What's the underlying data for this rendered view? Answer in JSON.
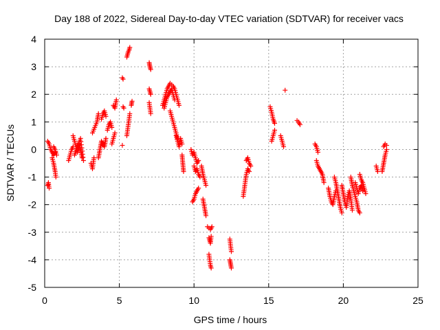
{
  "chart_data": {
    "type": "scatter",
    "title": "Day 188 of 2022, Sidereal Day-to-day VTEC variation (SDTVAR) for receiver vacs",
    "xlabel": "GPS time / hours",
    "ylabel": "SDTVAR / TECUs",
    "xlim": [
      0,
      25
    ],
    "ylim": [
      -5,
      4
    ],
    "xticks": [
      0,
      5,
      10,
      15,
      20,
      25
    ],
    "yticks": [
      -5,
      -4,
      -3,
      -2,
      -1,
      0,
      1,
      2,
      3,
      4
    ],
    "grid": true,
    "marker": "+",
    "marker_color": "#ff0000",
    "series": [
      {
        "name": "SDTVAR",
        "segments": [
          {
            "x": [
              0.2,
              0.25,
              0.3
            ],
            "y": [
              -1.3,
              -1.2,
              -1.4
            ]
          },
          {
            "x": [
              0.2,
              0.3,
              0.4,
              0.5,
              0.6,
              0.7
            ],
            "y": [
              0.3,
              0.2,
              0.0,
              -0.1,
              -0.2,
              -0.1
            ]
          },
          {
            "x": [
              0.5,
              0.6,
              0.7,
              0.75
            ],
            "y": [
              -0.3,
              -0.5,
              -0.8,
              -1.0
            ]
          },
          {
            "x": [
              0.6,
              0.7,
              0.8
            ],
            "y": [
              0.1,
              0.0,
              -0.2
            ]
          },
          {
            "x": [
              1.6,
              1.7,
              1.8,
              1.9
            ],
            "y": [
              -0.4,
              -0.2,
              0.0,
              0.1
            ]
          },
          {
            "x": [
              1.9,
              2.0,
              2.1,
              2.2,
              2.3,
              2.4,
              2.5
            ],
            "y": [
              0.5,
              0.3,
              0.1,
              -0.1,
              0.2,
              0.0,
              -0.3
            ]
          },
          {
            "x": [
              2.0,
              2.2,
              2.4,
              2.6
            ],
            "y": [
              -0.2,
              0.1,
              0.4,
              -0.4
            ]
          },
          {
            "x": [
              3.1,
              3.2,
              3.3
            ],
            "y": [
              -0.5,
              -0.7,
              -0.3
            ]
          },
          {
            "x": [
              3.2,
              3.35,
              3.5,
              3.6
            ],
            "y": [
              0.6,
              0.8,
              1.0,
              1.3
            ]
          },
          {
            "x": [
              3.6,
              3.7,
              3.8,
              3.9,
              4.0,
              4.1
            ],
            "y": [
              -0.3,
              0.0,
              0.3,
              0.2,
              0.1,
              0.4
            ]
          },
          {
            "x": [
              3.8,
              3.9,
              4.0,
              4.1
            ],
            "y": [
              1.1,
              1.3,
              1.4,
              1.2
            ]
          },
          {
            "x": [
              4.2,
              4.3,
              4.4,
              4.5
            ],
            "y": [
              0.7,
              0.9,
              1.0,
              0.8
            ]
          },
          {
            "x": [
              4.5,
              4.6,
              4.7
            ],
            "y": [
              0.2,
              0.4,
              0.6
            ]
          },
          {
            "x": [
              4.6,
              4.7,
              4.8
            ],
            "y": [
              1.6,
              1.5,
              1.8
            ]
          },
          {
            "x": [
              5.2
            ],
            "y": [
              0.15
            ]
          },
          {
            "x": [
              5.2,
              5.25
            ],
            "y": [
              2.6,
              2.55
            ]
          },
          {
            "x": [
              5.25,
              5.3
            ],
            "y": [
              1.55,
              1.5
            ]
          },
          {
            "x": [
              5.5,
              5.55,
              5.6,
              5.65,
              5.7
            ],
            "y": [
              0.5,
              0.7,
              0.9,
              1.1,
              1.3
            ]
          },
          {
            "x": [
              5.5,
              5.55,
              5.6,
              5.65,
              5.7
            ],
            "y": [
              3.35,
              3.45,
              3.55,
              3.6,
              3.7
            ]
          },
          {
            "x": [
              5.8,
              5.85
            ],
            "y": [
              1.6,
              1.75
            ]
          },
          {
            "x": [
              7.0,
              7.05,
              7.1
            ],
            "y": [
              3.15,
              3.0,
              2.9
            ]
          },
          {
            "x": [
              7.0,
              7.05,
              7.1
            ],
            "y": [
              2.2,
              2.1,
              2.0
            ]
          },
          {
            "x": [
              7.0,
              7.05,
              7.1
            ],
            "y": [
              1.7,
              1.5,
              1.3
            ]
          },
          {
            "x": [
              7.9,
              8.0,
              8.1,
              8.2,
              8.3,
              8.4,
              8.5,
              8.6,
              8.7,
              8.8,
              8.9,
              9.0
            ],
            "y": [
              1.6,
              1.8,
              2.0,
              2.2,
              2.3,
              2.4,
              2.35,
              2.3,
              2.2,
              2.0,
              1.8,
              1.6
            ]
          },
          {
            "x": [
              8.0,
              8.1,
              8.2,
              8.3,
              8.4,
              8.5,
              8.6,
              8.7
            ],
            "y": [
              1.5,
              1.7,
              1.9,
              2.0,
              2.1,
              2.2,
              2.0,
              1.8
            ]
          },
          {
            "x": [
              8.4,
              8.5,
              8.6,
              8.7,
              8.8,
              8.9
            ],
            "y": [
              1.4,
              1.2,
              1.0,
              0.8,
              0.6,
              0.4
            ]
          },
          {
            "x": [
              8.8,
              8.9,
              9.0,
              9.1,
              9.2
            ],
            "y": [
              0.5,
              0.3,
              0.1,
              0.4,
              0.2
            ]
          },
          {
            "x": [
              9.2,
              9.25,
              9.3
            ],
            "y": [
              -0.2,
              -0.5,
              -0.8
            ]
          },
          {
            "x": [
              9.8,
              9.9,
              10.0,
              10.1,
              10.2,
              10.3
            ],
            "y": [
              0.0,
              -0.2,
              -0.1,
              -0.3,
              -0.5,
              -0.4
            ]
          },
          {
            "x": [
              10.0,
              10.1,
              10.2,
              10.3,
              10.4
            ],
            "y": [
              -0.6,
              -0.8,
              -0.7,
              -0.9,
              -1.0
            ]
          },
          {
            "x": [
              9.9,
              10.0,
              10.1,
              10.2,
              10.3
            ],
            "y": [
              -1.9,
              -1.8,
              -1.6,
              -1.5,
              -1.4
            ]
          },
          {
            "x": [
              10.5,
              10.6,
              10.7,
              10.8
            ],
            "y": [
              -0.6,
              -0.9,
              -1.1,
              -1.3
            ]
          },
          {
            "x": [
              10.6,
              10.7,
              10.8
            ],
            "y": [
              -1.8,
              -2.1,
              -2.4
            ]
          },
          {
            "x": [
              10.9,
              11.0,
              11.1,
              11.2
            ],
            "y": [
              -2.8,
              -2.85,
              -2.9,
              -2.8
            ]
          },
          {
            "x": [
              11.0,
              11.05,
              11.1,
              11.15
            ],
            "y": [
              -3.2,
              -3.3,
              -3.4,
              -3.15
            ]
          },
          {
            "x": [
              11.0,
              11.05,
              11.1,
              11.15
            ],
            "y": [
              -3.8,
              -4.0,
              -4.2,
              -4.3
            ]
          },
          {
            "x": [
              12.4,
              12.45,
              12.5
            ],
            "y": [
              -3.25,
              -3.5,
              -3.7
            ]
          },
          {
            "x": [
              12.4,
              12.45,
              12.5
            ],
            "y": [
              -4.0,
              -4.15,
              -4.3
            ]
          },
          {
            "x": [
              13.3,
              13.4,
              13.5,
              13.6,
              13.7
            ],
            "y": [
              -1.7,
              -1.3,
              -0.9,
              -0.7,
              -0.8
            ]
          },
          {
            "x": [
              13.5,
              13.6,
              13.7,
              13.8
            ],
            "y": [
              -0.4,
              -0.3,
              -0.5,
              -0.6
            ]
          },
          {
            "x": [
              15.1,
              15.2,
              15.3,
              15.4
            ],
            "y": [
              1.55,
              1.35,
              1.1,
              0.95
            ]
          },
          {
            "x": [
              15.2,
              15.3,
              15.4
            ],
            "y": [
              0.3,
              0.5,
              0.7
            ]
          },
          {
            "x": [
              15.8,
              15.9,
              16.0
            ],
            "y": [
              0.5,
              0.3,
              0.1
            ]
          },
          {
            "x": [
              16.1
            ],
            "y": [
              2.15
            ]
          },
          {
            "x": [
              16.9,
              17.0,
              17.1
            ],
            "y": [
              1.05,
              1.0,
              0.9
            ]
          },
          {
            "x": [
              18.1,
              18.2,
              18.3
            ],
            "y": [
              0.2,
              0.1,
              -0.1
            ]
          },
          {
            "x": [
              18.2,
              18.3,
              18.4,
              18.5,
              18.6,
              18.7
            ],
            "y": [
              -0.4,
              -0.6,
              -0.7,
              -0.8,
              -0.9,
              -1.2
            ]
          },
          {
            "x": [
              19.0,
              19.1,
              19.2,
              19.3,
              19.4,
              19.5
            ],
            "y": [
              -1.4,
              -1.7,
              -1.9,
              -2.0,
              -1.7,
              -1.5
            ]
          },
          {
            "x": [
              19.4,
              19.5,
              19.6,
              19.7,
              19.8,
              19.9
            ],
            "y": [
              -1.0,
              -1.2,
              -1.5,
              -1.8,
              -2.1,
              -2.3
            ]
          },
          {
            "x": [
              19.9,
              20.0,
              20.1,
              20.2,
              20.3,
              20.4,
              20.5,
              20.6
            ],
            "y": [
              -1.3,
              -1.6,
              -1.9,
              -2.1,
              -1.7,
              -1.5,
              -1.8,
              -2.2
            ]
          },
          {
            "x": [
              20.5,
              20.6,
              20.7,
              20.8,
              20.9,
              21.0,
              21.1
            ],
            "y": [
              -1.0,
              -1.3,
              -1.5,
              -1.7,
              -1.9,
              -2.2,
              -2.3
            ]
          },
          {
            "x": [
              20.8,
              20.9,
              21.0,
              21.1,
              21.2,
              21.3
            ],
            "y": [
              -1.2,
              -1.4,
              -1.6,
              -1.4,
              -1.3,
              -1.5
            ]
          },
          {
            "x": [
              21.1,
              21.2,
              21.3,
              21.4,
              21.5
            ],
            "y": [
              -0.9,
              -1.1,
              -1.2,
              -1.4,
              -1.6
            ]
          },
          {
            "x": [
              22.2,
              22.3
            ],
            "y": [
              -0.6,
              -0.8
            ]
          },
          {
            "x": [
              22.6,
              22.7,
              22.8,
              22.9
            ],
            "y": [
              -0.8,
              -0.5,
              -0.2,
              0.0
            ]
          },
          {
            "x": [
              22.7,
              22.8,
              22.9
            ],
            "y": [
              0.1,
              0.2,
              0.15
            ]
          }
        ]
      }
    ]
  }
}
